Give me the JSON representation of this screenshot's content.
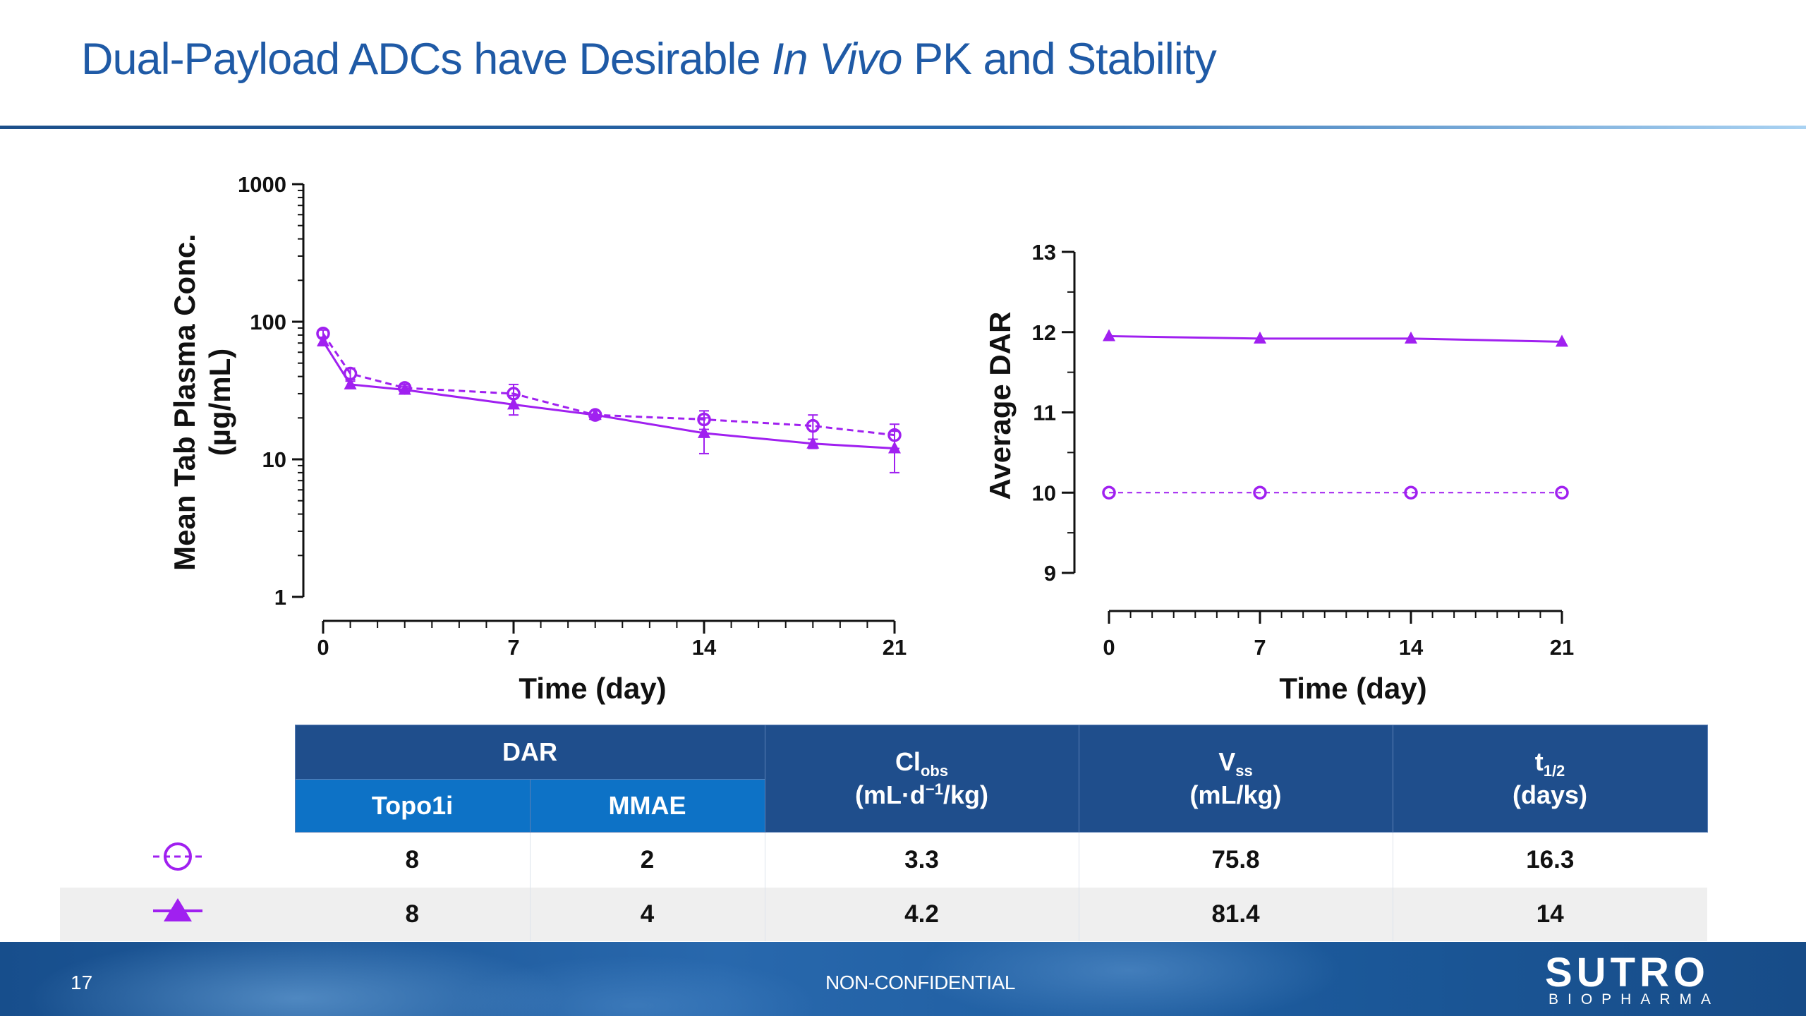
{
  "slide": {
    "title_part1": "Dual-Payload ADCs have Desirable ",
    "title_italic": "In Vivo",
    "title_part2": " PK and Stability",
    "page_number": "17",
    "footer_text": "NON-CONFIDENTIAL",
    "logo_main": "SUTRO",
    "logo_sub": "BIOPHARMA"
  },
  "colors": {
    "series": "#a020f0",
    "title": "#1f5aa6",
    "table_header_dark": "#1f4e8c",
    "table_header_mid": "#0d72c6"
  },
  "chart_data": [
    {
      "type": "line",
      "xlabel": "Time (day)",
      "ylabel_line1": "Mean Tab Plasma Conc.",
      "ylabel_line2": "(µg/mL)",
      "y_scale": "log",
      "xlim": [
        0,
        21
      ],
      "ylim": [
        1,
        1000
      ],
      "x_ticks": [
        "0",
        "7",
        "14",
        "21"
      ],
      "y_ticks": [
        "1",
        "10",
        "100",
        "1000"
      ],
      "series": [
        {
          "marker": "open-circle",
          "line": "dashed",
          "x": [
            0,
            1,
            3,
            7,
            10,
            14,
            18,
            21
          ],
          "y": [
            82,
            42,
            33,
            30,
            21,
            19.5,
            17.5,
            15
          ],
          "err": [
            5,
            4,
            2,
            5,
            1.5,
            3,
            3.5,
            3
          ]
        },
        {
          "marker": "filled-triangle",
          "line": "solid",
          "x": [
            0,
            1,
            3,
            7,
            10,
            14,
            18,
            21
          ],
          "y": [
            72,
            35,
            32,
            25,
            21,
            15.5,
            13,
            12
          ],
          "err": [
            5,
            2,
            2,
            4,
            1.5,
            4.5,
            1,
            4
          ]
        }
      ]
    },
    {
      "type": "line",
      "xlabel": "Time (day)",
      "ylabel": "Average DAR",
      "xlim": [
        0,
        21
      ],
      "ylim": [
        9,
        13
      ],
      "x_ticks": [
        "0",
        "7",
        "14",
        "21"
      ],
      "y_ticks": [
        "9",
        "10",
        "11",
        "12",
        "13"
      ],
      "series": [
        {
          "marker": "open-circle",
          "line": "dashed",
          "x": [
            0,
            7,
            14,
            21
          ],
          "y": [
            10,
            10,
            10,
            10
          ]
        },
        {
          "marker": "filled-triangle",
          "line": "solid",
          "x": [
            0,
            7,
            14,
            21
          ],
          "y": [
            11.95,
            11.92,
            11.92,
            11.88
          ]
        }
      ]
    }
  ],
  "table": {
    "dar_header": "DAR",
    "topo_header": "Topo1i",
    "mmae_header": "MMAE",
    "cl_main": "Cl",
    "cl_sub": "obs",
    "cl_units_a": "(mL·d",
    "cl_units_sup": "−1",
    "cl_units_b": "/kg)",
    "vss_main": "V",
    "vss_sub": "ss",
    "vss_units": "(mL/kg)",
    "thalf_main": "t",
    "thalf_sub": "1/2",
    "thalf_units": "(days)",
    "rows": [
      {
        "marker": "open-circle-dashed",
        "topo1i": "8",
        "mmae": "2",
        "cl": "3.3",
        "vss": "75.8",
        "thalf": "16.3"
      },
      {
        "marker": "filled-triangle-solid",
        "topo1i": "8",
        "mmae": "4",
        "cl": "4.2",
        "vss": "81.4",
        "thalf": "14"
      }
    ]
  }
}
